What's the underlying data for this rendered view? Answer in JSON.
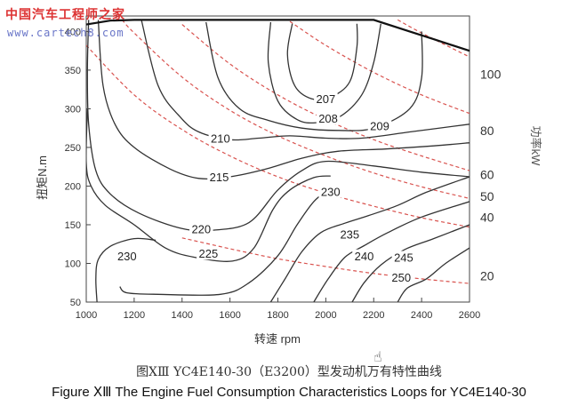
{
  "watermark": {
    "line1": "中国汽车工程师之家",
    "line2": "www.cartech8.com"
  },
  "caption_cn": "图ⅩⅢ YC4E140-30（E3200）型发动机万有特性曲线",
  "caption_en": "Figure ⅩⅢ  The Engine Fuel Consumption Characteristics Loops for YC4E140-30",
  "chart_data": {
    "type": "line",
    "title": "",
    "xlabel": "转速 rpm",
    "ylabel": "扭矩N.m",
    "y2label": "功率kW",
    "xlim": [
      1000,
      2600
    ],
    "ylim": [
      50,
      420
    ],
    "xticks": [
      1000,
      1200,
      1400,
      1600,
      1800,
      2000,
      2200,
      2400,
      2600
    ],
    "yticks": [
      50,
      100,
      150,
      200,
      250,
      300,
      350,
      400
    ],
    "power_ticks": [
      20,
      40,
      50,
      60,
      80,
      100
    ],
    "grid": false,
    "legend": "none",
    "external_characteristic": [
      [
        1000,
        409
      ],
      [
        1100,
        414
      ],
      [
        1200,
        415
      ],
      [
        1400,
        415
      ],
      [
        1600,
        415
      ],
      [
        1800,
        415
      ],
      [
        2000,
        415
      ],
      [
        2200,
        415
      ],
      [
        2350,
        400
      ],
      [
        2450,
        390
      ],
      [
        2600,
        375
      ]
    ],
    "fuel_contours": [
      {
        "label": "207",
        "label_at": [
          2000,
          313
        ],
        "points": [
          [
            1860,
            410
          ],
          [
            1840,
            370
          ],
          [
            1870,
            330
          ],
          [
            1940,
            313
          ],
          [
            2020,
            315
          ],
          [
            2100,
            335
          ],
          [
            2130,
            380
          ],
          [
            2130,
            410
          ]
        ]
      },
      {
        "label": "208",
        "label_at": [
          2010,
          288
        ],
        "points": [
          [
            1770,
            412
          ],
          [
            1760,
            360
          ],
          [
            1800,
            310
          ],
          [
            1880,
            286
          ],
          [
            1960,
            282
          ],
          [
            2060,
            290
          ],
          [
            2150,
            318
          ],
          [
            2200,
            360
          ],
          [
            2230,
            410
          ]
        ]
      },
      {
        "label": "209",
        "label_at": [
          2225,
          278
        ],
        "points": [
          [
            1500,
            412
          ],
          [
            1550,
            340
          ],
          [
            1640,
            300
          ],
          [
            1760,
            285
          ],
          [
            1900,
            275
          ],
          [
            2050,
            272
          ],
          [
            2200,
            275
          ],
          [
            2350,
            300
          ],
          [
            2400,
            340
          ],
          [
            2400,
            400
          ]
        ]
      },
      {
        "label": "210",
        "label_at": [
          1560,
          262
        ],
        "points": [
          [
            1230,
            415
          ],
          [
            1300,
            330
          ],
          [
            1390,
            290
          ],
          [
            1470,
            270
          ],
          [
            1600,
            260
          ],
          [
            1720,
            262
          ],
          [
            1850,
            265
          ],
          [
            2000,
            262
          ],
          [
            2150,
            262
          ],
          [
            2350,
            270
          ],
          [
            2600,
            280
          ]
        ]
      },
      {
        "label": "215",
        "label_at": [
          1555,
          212
        ],
        "points": [
          [
            1050,
            415
          ],
          [
            1070,
            330
          ],
          [
            1120,
            280
          ],
          [
            1200,
            250
          ],
          [
            1350,
            222
          ],
          [
            1470,
            210
          ],
          [
            1600,
            212
          ],
          [
            1750,
            222
          ],
          [
            1900,
            236
          ],
          [
            2050,
            245
          ],
          [
            2250,
            248
          ],
          [
            2450,
            252
          ],
          [
            2600,
            256
          ]
        ]
      },
      {
        "label": "220",
        "label_at": [
          1480,
          145
        ],
        "points": [
          [
            1010,
            415
          ],
          [
            1005,
            350
          ],
          [
            1010,
            280
          ],
          [
            1040,
            220
          ],
          [
            1100,
            190
          ],
          [
            1220,
            165
          ],
          [
            1400,
            145
          ],
          [
            1530,
            143
          ],
          [
            1680,
            153
          ],
          [
            1800,
            195
          ],
          [
            1900,
            220
          ],
          [
            2000,
            232
          ],
          [
            2200,
            226
          ],
          [
            2400,
            218
          ],
          [
            2600,
            212
          ]
        ]
      },
      {
        "label": "225",
        "label_at": [
          1510,
          113
        ],
        "points": [
          [
            1005,
            300
          ],
          [
            1000,
            230
          ],
          [
            1020,
            200
          ],
          [
            1080,
            175
          ],
          [
            1200,
            150
          ],
          [
            1330,
            120
          ],
          [
            1450,
            108
          ],
          [
            1610,
            103
          ],
          [
            1700,
            120
          ],
          [
            1780,
            170
          ],
          [
            1850,
            195
          ],
          [
            1950,
            211
          ],
          [
            2020,
            213
          ]
        ]
      },
      {
        "label": "230",
        "label_at": [
          1170,
          110
        ],
        "points": [
          [
            1045,
            50
          ],
          [
            1040,
            80
          ],
          [
            1050,
            105
          ],
          [
            1100,
            122
          ],
          [
            1200,
            132
          ],
          [
            1290,
            130
          ]
        ]
      },
      {
        "label": "230",
        "label_at": [
          2020,
          193
        ],
        "points": [
          [
            1140,
            70
          ],
          [
            1170,
            62
          ],
          [
            1300,
            60
          ],
          [
            1560,
            60
          ],
          [
            1680,
            75
          ],
          [
            1800,
            110
          ],
          [
            1880,
            150
          ],
          [
            1950,
            180
          ],
          [
            2010,
            195
          ]
        ]
      },
      {
        "label": "235",
        "label_at": [
          2100,
          138
        ],
        "points": [
          [
            1770,
            50
          ],
          [
            1830,
            80
          ],
          [
            1900,
            115
          ],
          [
            1980,
            140
          ],
          [
            2080,
            152
          ],
          [
            2180,
            162
          ],
          [
            2300,
            175
          ],
          [
            2420,
            192
          ],
          [
            2600,
            212
          ]
        ]
      },
      {
        "label": "240",
        "label_at": [
          2160,
          110
        ],
        "points": [
          [
            1950,
            50
          ],
          [
            2010,
            80
          ],
          [
            2080,
            108
          ],
          [
            2160,
            123
          ],
          [
            2260,
            140
          ],
          [
            2400,
            160
          ],
          [
            2600,
            180
          ]
        ]
      },
      {
        "label": "245",
        "label_at": [
          2325,
          108
        ],
        "points": [
          [
            2110,
            50
          ],
          [
            2160,
            75
          ],
          [
            2230,
            98
          ],
          [
            2330,
            118
          ],
          [
            2450,
            132
          ],
          [
            2600,
            150
          ]
        ]
      },
      {
        "label": "250",
        "label_at": [
          2315,
          82
        ],
        "points": [
          [
            2300,
            50
          ],
          [
            2340,
            68
          ],
          [
            2420,
            80
          ],
          [
            2500,
            100
          ],
          [
            2600,
            120
          ]
        ]
      }
    ],
    "power_curves": [
      {
        "label": "20",
        "label_at": [
          2650,
          84
        ],
        "points": [
          [
            1400,
            133
          ],
          [
            1600,
            119
          ],
          [
            1800,
            106
          ],
          [
            2000,
            96
          ],
          [
            2200,
            87
          ],
          [
            2400,
            80
          ],
          [
            2600,
            74
          ]
        ]
      },
      {
        "label": "40",
        "label_at": [
          2650,
          160
        ],
        "points": [
          [
            1000,
            382
          ],
          [
            1200,
            318
          ],
          [
            1400,
            273
          ],
          [
            1600,
            239
          ],
          [
            1800,
            212
          ],
          [
            2000,
            191
          ],
          [
            2200,
            174
          ],
          [
            2400,
            159
          ],
          [
            2600,
            147
          ]
        ]
      },
      {
        "label": "50",
        "label_at": [
          2650,
          187
        ],
        "points": [
          [
            1150,
            415
          ],
          [
            1200,
            398
          ],
          [
            1400,
            341
          ],
          [
            1600,
            298
          ],
          [
            1800,
            265
          ],
          [
            2000,
            239
          ],
          [
            2200,
            217
          ],
          [
            2400,
            199
          ],
          [
            2600,
            184
          ]
        ]
      },
      {
        "label": "60",
        "label_at": [
          2650,
          215
        ],
        "points": [
          [
            1400,
            409
          ],
          [
            1600,
            358
          ],
          [
            1800,
            318
          ],
          [
            2000,
            286
          ],
          [
            2200,
            260
          ],
          [
            2400,
            239
          ],
          [
            2600,
            220
          ]
        ]
      },
      {
        "label": "80",
        "label_at": [
          2650,
          272
        ],
        "points": [
          [
            1850,
            413
          ],
          [
            2000,
            382
          ],
          [
            2200,
            347
          ],
          [
            2400,
            318
          ],
          [
            2600,
            294
          ]
        ]
      },
      {
        "label": "100",
        "label_at": [
          2650,
          345
        ],
        "points": [
          [
            2300,
            415
          ],
          [
            2400,
            398
          ],
          [
            2600,
            367
          ]
        ]
      }
    ]
  }
}
